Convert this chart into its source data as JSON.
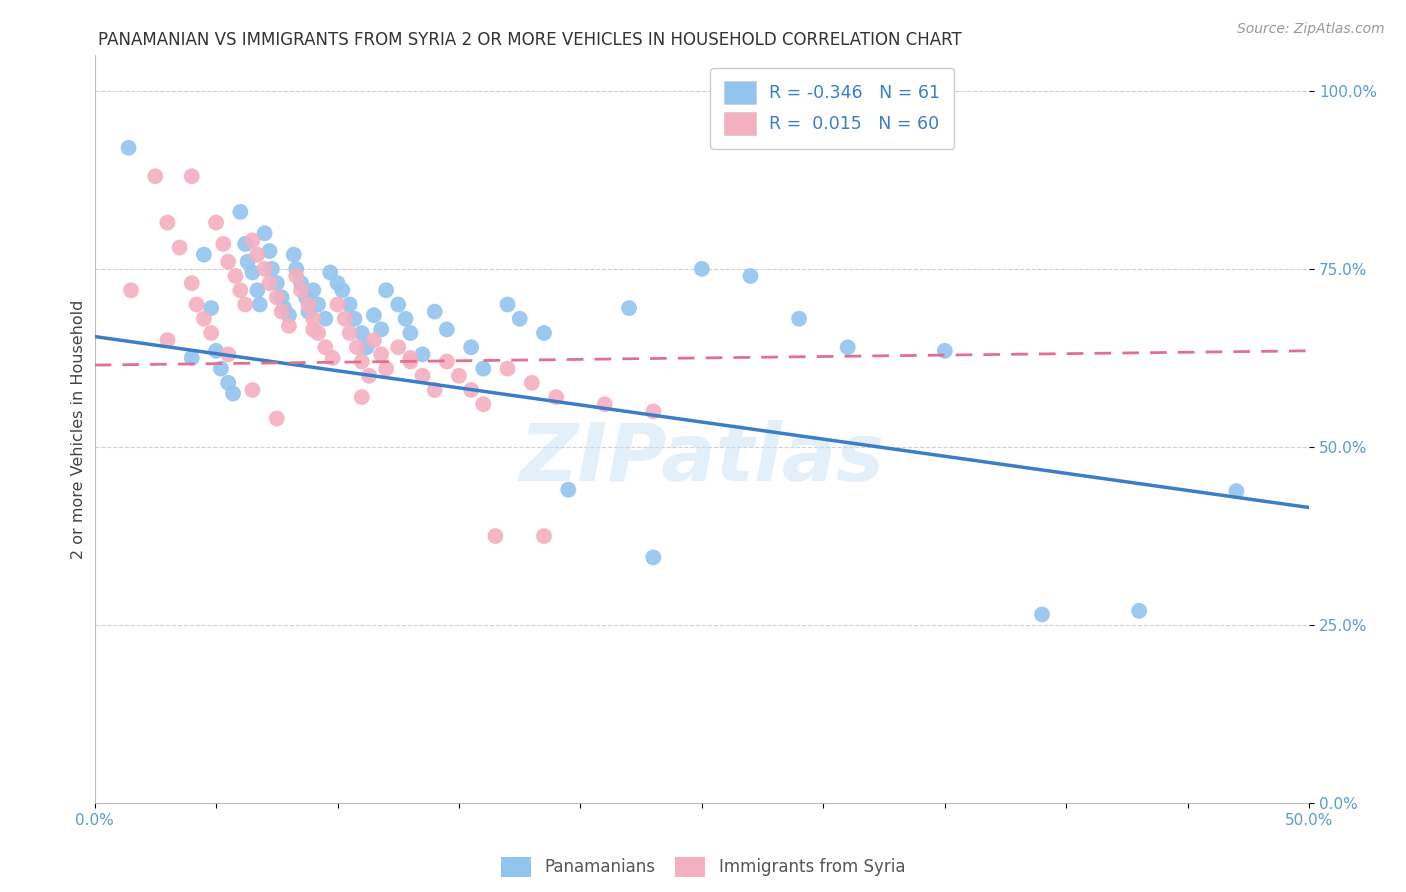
{
  "title": "PANAMANIAN VS IMMIGRANTS FROM SYRIA 2 OR MORE VEHICLES IN HOUSEHOLD CORRELATION CHART",
  "source": "Source: ZipAtlas.com",
  "ylabel": "2 or more Vehicles in Household",
  "xlim": [
    0.0,
    0.5
  ],
  "ylim": [
    0.0,
    1.05
  ],
  "right_yticks": [
    0.0,
    0.25,
    0.5,
    0.75,
    1.0
  ],
  "right_yticklabels": [
    "0.0%",
    "25.0%",
    "50.0%",
    "75.0%",
    "100.0%"
  ],
  "xticks": [
    0.0,
    0.05,
    0.1,
    0.15,
    0.2,
    0.25,
    0.3,
    0.35,
    0.4,
    0.45,
    0.5
  ],
  "xticklabels": [
    "0.0%",
    "",
    "",
    "",
    "",
    "",
    "",
    "",
    "",
    "",
    "50.0%"
  ],
  "blue_color": "#93c4ef",
  "pink_color": "#f4afc0",
  "blue_line_color": "#3a7dc9",
  "pink_line_color": "#e07090",
  "R_blue": -0.346,
  "N_blue": 61,
  "R_pink": 0.015,
  "N_pink": 60,
  "legend_label_blue": "Panamanians",
  "legend_label_pink": "Immigrants from Syria",
  "watermark": "ZIPatlas",
  "blue_line_x0": 0.0,
  "blue_line_y0": 0.655,
  "blue_line_x1": 0.5,
  "blue_line_y1": 0.415,
  "pink_line_x0": 0.0,
  "pink_line_y0": 0.615,
  "pink_line_x1": 0.5,
  "pink_line_y1": 0.635,
  "blue_scatter_x": [
    0.014,
    0.04,
    0.045,
    0.048,
    0.05,
    0.052,
    0.055,
    0.057,
    0.06,
    0.062,
    0.063,
    0.065,
    0.067,
    0.068,
    0.07,
    0.072,
    0.073,
    0.075,
    0.077,
    0.078,
    0.08,
    0.082,
    0.083,
    0.085,
    0.087,
    0.088,
    0.09,
    0.092,
    0.095,
    0.097,
    0.1,
    0.102,
    0.105,
    0.107,
    0.11,
    0.112,
    0.115,
    0.118,
    0.12,
    0.125,
    0.128,
    0.13,
    0.135,
    0.14,
    0.145,
    0.155,
    0.16,
    0.17,
    0.175,
    0.185,
    0.195,
    0.22,
    0.23,
    0.25,
    0.27,
    0.29,
    0.31,
    0.35,
    0.39,
    0.43,
    0.47
  ],
  "blue_scatter_y": [
    0.92,
    0.625,
    0.77,
    0.695,
    0.635,
    0.61,
    0.59,
    0.575,
    0.83,
    0.785,
    0.76,
    0.745,
    0.72,
    0.7,
    0.8,
    0.775,
    0.75,
    0.73,
    0.71,
    0.695,
    0.685,
    0.77,
    0.75,
    0.73,
    0.71,
    0.69,
    0.72,
    0.7,
    0.68,
    0.745,
    0.73,
    0.72,
    0.7,
    0.68,
    0.66,
    0.64,
    0.685,
    0.665,
    0.72,
    0.7,
    0.68,
    0.66,
    0.63,
    0.69,
    0.665,
    0.64,
    0.61,
    0.7,
    0.68,
    0.66,
    0.44,
    0.695,
    0.345,
    0.75,
    0.74,
    0.68,
    0.64,
    0.635,
    0.265,
    0.27,
    0.438
  ],
  "pink_scatter_x": [
    0.015,
    0.025,
    0.03,
    0.035,
    0.04,
    0.042,
    0.045,
    0.048,
    0.05,
    0.053,
    0.055,
    0.058,
    0.06,
    0.062,
    0.065,
    0.067,
    0.07,
    0.072,
    0.075,
    0.077,
    0.08,
    0.083,
    0.085,
    0.088,
    0.09,
    0.092,
    0.095,
    0.098,
    0.1,
    0.103,
    0.105,
    0.108,
    0.11,
    0.113,
    0.115,
    0.118,
    0.12,
    0.125,
    0.13,
    0.135,
    0.14,
    0.145,
    0.15,
    0.155,
    0.16,
    0.17,
    0.18,
    0.19,
    0.21,
    0.23,
    0.03,
    0.04,
    0.055,
    0.065,
    0.075,
    0.09,
    0.11,
    0.13,
    0.165,
    0.185
  ],
  "pink_scatter_y": [
    0.72,
    0.88,
    0.815,
    0.78,
    0.73,
    0.7,
    0.68,
    0.66,
    0.815,
    0.785,
    0.76,
    0.74,
    0.72,
    0.7,
    0.79,
    0.77,
    0.75,
    0.73,
    0.71,
    0.69,
    0.67,
    0.74,
    0.72,
    0.7,
    0.68,
    0.66,
    0.64,
    0.625,
    0.7,
    0.68,
    0.66,
    0.64,
    0.62,
    0.6,
    0.65,
    0.63,
    0.61,
    0.64,
    0.62,
    0.6,
    0.58,
    0.62,
    0.6,
    0.58,
    0.56,
    0.61,
    0.59,
    0.57,
    0.56,
    0.55,
    0.65,
    0.88,
    0.63,
    0.58,
    0.54,
    0.665,
    0.57,
    0.625,
    0.375,
    0.375
  ],
  "background_color": "#ffffff",
  "grid_color": "#d0d0d0"
}
